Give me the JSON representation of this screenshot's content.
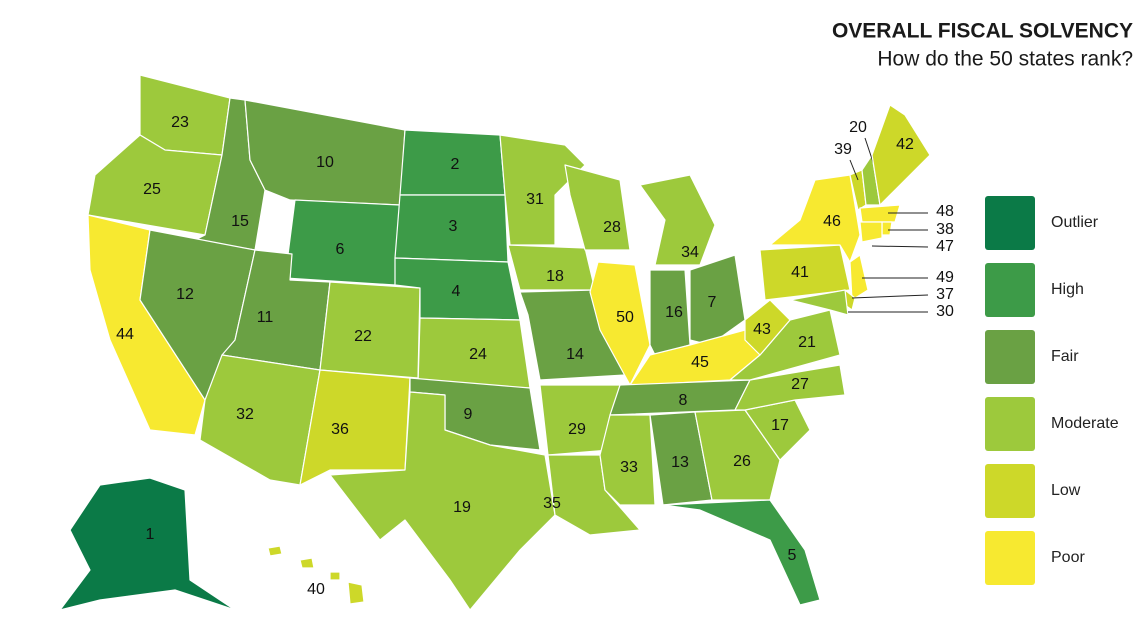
{
  "title": "OVERALL FISCAL SOLVENCY",
  "subtitle": "How do the 50 states rank?",
  "legend": [
    {
      "name": "Outlier",
      "color": "#0b7a47"
    },
    {
      "name": "High",
      "color": "#3d9b48"
    },
    {
      "name": "Fair",
      "color": "#6aa144"
    },
    {
      "name": "Moderate",
      "color": "#9dc93c"
    },
    {
      "name": "Low",
      "color": "#cdd829"
    },
    {
      "name": "Poor",
      "color": "#f7e930"
    }
  ],
  "regions": [
    {
      "rank": 23,
      "color": "#9dc93c"
    },
    {
      "rank": 25,
      "color": "#9dc93c"
    },
    {
      "rank": 44,
      "color": "#f7e930"
    },
    {
      "rank": 15,
      "color": "#6aa144"
    },
    {
      "rank": 12,
      "color": "#6aa144"
    },
    {
      "rank": 10,
      "color": "#6aa144"
    },
    {
      "rank": 6,
      "color": "#3d9b48"
    },
    {
      "rank": 11,
      "color": "#6aa144"
    },
    {
      "rank": 22,
      "color": "#9dc93c"
    },
    {
      "rank": 32,
      "color": "#9dc93c"
    },
    {
      "rank": 36,
      "color": "#cdd829"
    },
    {
      "rank": 2,
      "color": "#3d9b48"
    },
    {
      "rank": 3,
      "color": "#3d9b48"
    },
    {
      "rank": 4,
      "color": "#3d9b48"
    },
    {
      "rank": 24,
      "color": "#9dc93c"
    },
    {
      "rank": 9,
      "color": "#6aa144"
    },
    {
      "rank": 19,
      "color": "#9dc93c"
    },
    {
      "rank": 31,
      "color": "#9dc93c"
    },
    {
      "rank": 18,
      "color": "#9dc93c"
    },
    {
      "rank": 14,
      "color": "#6aa144"
    },
    {
      "rank": 29,
      "color": "#9dc93c"
    },
    {
      "rank": 35,
      "color": "#9dc93c"
    },
    {
      "rank": 28,
      "color": "#9dc93c"
    },
    {
      "rank": 50,
      "color": "#f7e930"
    },
    {
      "rank": 34,
      "color": "#9dc93c"
    },
    {
      "rank": 16,
      "color": "#6aa144"
    },
    {
      "rank": 7,
      "color": "#6aa144"
    },
    {
      "rank": 45,
      "color": "#f7e930"
    },
    {
      "rank": 8,
      "color": "#6aa144"
    },
    {
      "rank": 33,
      "color": "#9dc93c"
    },
    {
      "rank": 13,
      "color": "#6aa144"
    },
    {
      "rank": 26,
      "color": "#9dc93c"
    },
    {
      "rank": 5,
      "color": "#3d9b48"
    },
    {
      "rank": 17,
      "color": "#9dc93c"
    },
    {
      "rank": 27,
      "color": "#9dc93c"
    },
    {
      "rank": 21,
      "color": "#9dc93c"
    },
    {
      "rank": 43,
      "color": "#cdd829"
    },
    {
      "rank": 41,
      "color": "#cdd829"
    },
    {
      "rank": 46,
      "color": "#f7e930"
    },
    {
      "rank": 39,
      "color": "#cdd829"
    },
    {
      "rank": 20,
      "color": "#9dc93c"
    },
    {
      "rank": 42,
      "color": "#cdd829"
    },
    {
      "rank": 48,
      "color": "#f7e930"
    },
    {
      "rank": 38,
      "color": "#f7e930"
    },
    {
      "rank": 47,
      "color": "#f7e930"
    },
    {
      "rank": 49,
      "color": "#f7e930"
    },
    {
      "rank": 37,
      "color": "#cdd829"
    },
    {
      "rank": 30,
      "color": "#9dc93c"
    },
    {
      "rank": 40,
      "color": "#cdd829"
    },
    {
      "rank": 1,
      "color": "#0b7a47"
    }
  ]
}
